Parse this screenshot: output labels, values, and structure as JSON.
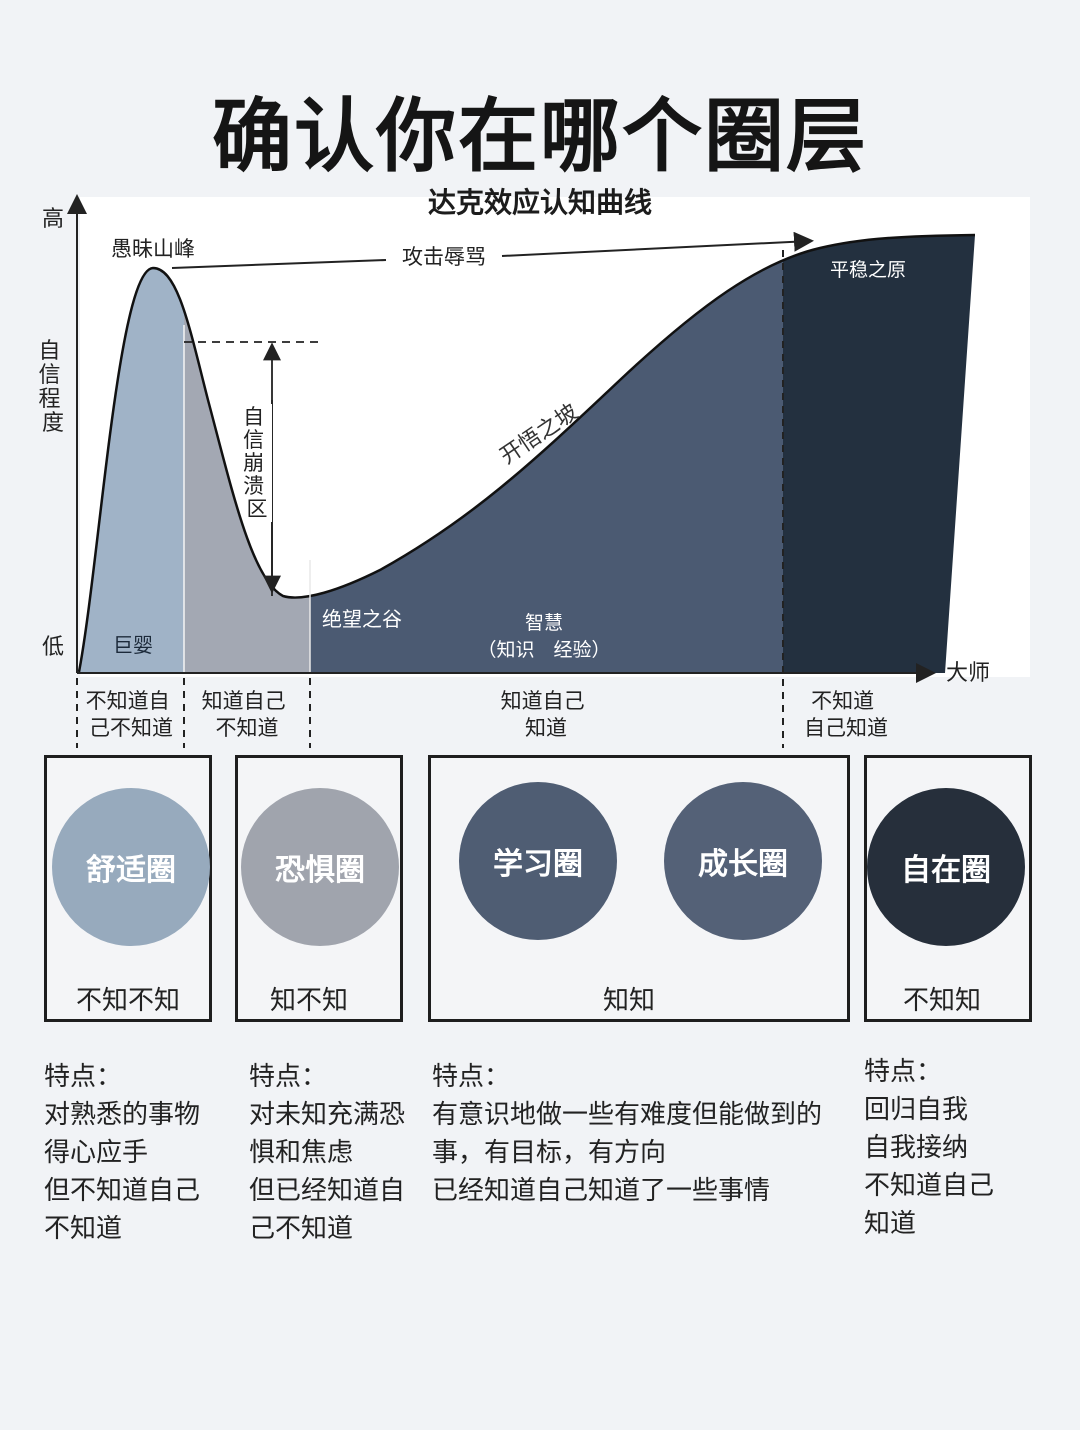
{
  "title": "确认你在哪个圈层",
  "chart": {
    "subtitle": "达克效应认知曲线",
    "y_top": "高",
    "y_bottom": "低",
    "y_axis_label": [
      "自",
      "信",
      "程",
      "度"
    ],
    "x_end": "大师",
    "peak": "愚昧山峰",
    "attack": "攻击辱骂",
    "collapse": [
      "自",
      "信",
      "崩",
      "溃",
      "区"
    ],
    "slope": "开悟之坡",
    "valley": "绝望之谷",
    "plateau": "平稳之原",
    "wisdom": "智慧",
    "wisdom_note": "（知识　经验）",
    "baby": "巨婴",
    "colors": {
      "zone1": "#a0b3c7",
      "zone2": "#a3a8b3",
      "zone3": "#4b5a72",
      "zone4": "#23303f"
    }
  },
  "stages": [
    {
      "line1": "不知道自",
      "line2": "己不知道"
    },
    {
      "line1": "知道自己",
      "line2": "不知道"
    },
    {
      "line1": "知道自己",
      "line2": "知道"
    },
    {
      "line1": "不知道",
      "line2": "自己知道"
    }
  ],
  "zones": [
    {
      "circles": [
        {
          "label": "舒适圈",
          "color": "#97aabd"
        }
      ],
      "label": "不知不知"
    },
    {
      "circles": [
        {
          "label": "恐惧圈",
          "color": "#a0a4ad"
        }
      ],
      "label": "知不知"
    },
    {
      "circles": [
        {
          "label": "学习圈",
          "color": "#4f5d73"
        },
        {
          "label": "成长圈",
          "color": "#546177"
        }
      ],
      "label": "知知"
    },
    {
      "circles": [
        {
          "label": "自在圈",
          "color": "#262f3b"
        }
      ],
      "label": "不知知"
    }
  ],
  "traits": [
    {
      "heading": "特点：",
      "lines": [
        "对熟悉的事物",
        "得心应手",
        "但不知道自己",
        "不知道"
      ]
    },
    {
      "heading": "特点：",
      "lines": [
        "对未知充满恐",
        "惧和焦虑",
        "但已经知道自",
        "己不知道"
      ]
    },
    {
      "heading": "特点：",
      "lines": [
        "有意识地做一些有难度但能做到的",
        "事，有目标，有方向",
        "已经知道自己知道了一些事情"
      ]
    },
    {
      "heading": "特点：",
      "lines": [
        "回归自我",
        "自我接纳",
        "不知道自己",
        "知道"
      ]
    }
  ]
}
